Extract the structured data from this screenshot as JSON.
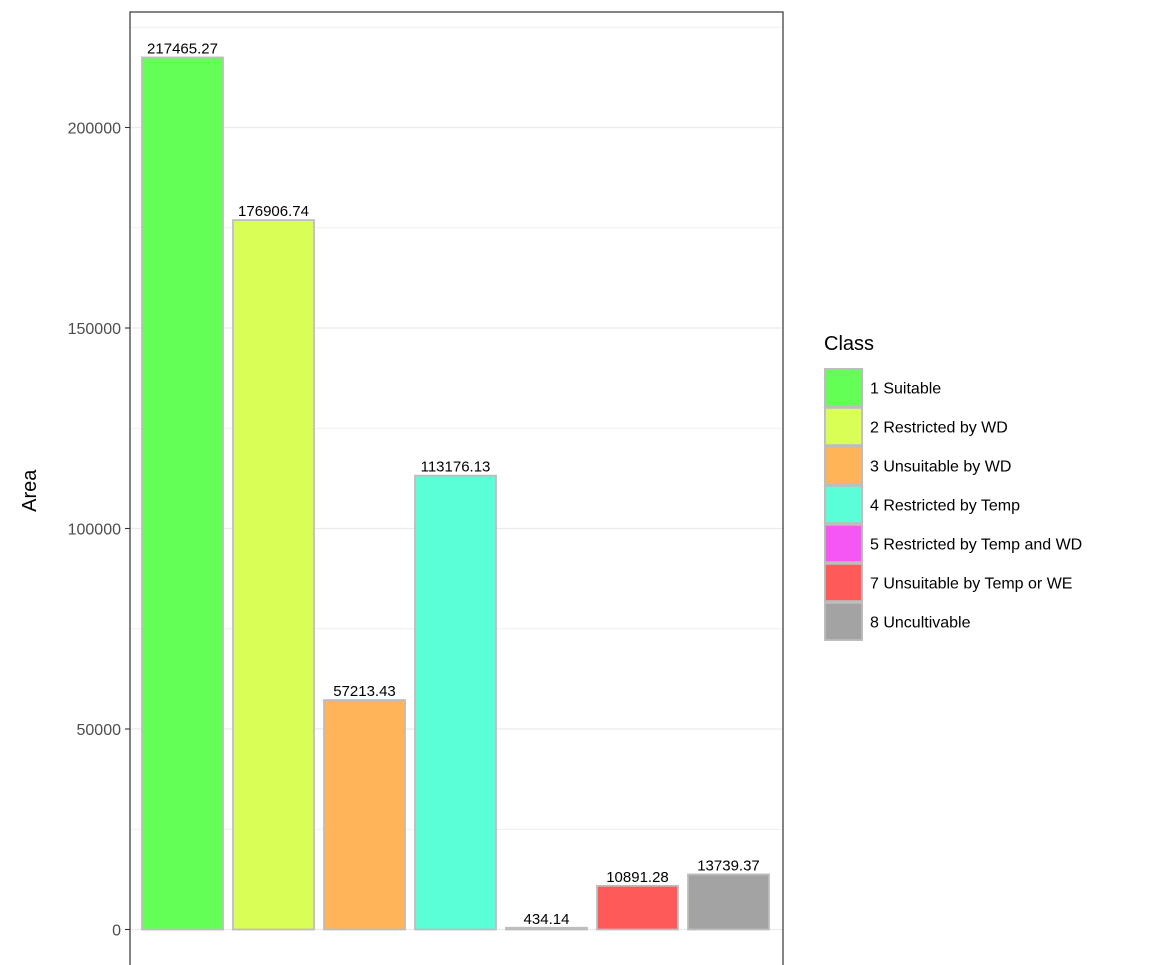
{
  "chart_data": {
    "type": "bar",
    "ylabel": "Area",
    "xlabel": "",
    "ylim": [
      0,
      225000
    ],
    "yticks": [
      0,
      50000,
      100000,
      150000,
      200000
    ],
    "ytick_labels": [
      "0",
      "50000",
      "100000",
      "150000",
      "200000"
    ],
    "grid": true,
    "legend_position": "right",
    "legend_title": "Class",
    "bars": [
      {
        "class": "1 Suitable",
        "value": 217465.27,
        "label": "217465.27",
        "color": "#63FF57"
      },
      {
        "class": "2 Restricted by WD",
        "value": 176906.74,
        "label": "176906.74",
        "color": "#D9FF57"
      },
      {
        "class": "3 Unsuitable by WD",
        "value": 57213.43,
        "label": "57213.43",
        "color": "#FFB45A"
      },
      {
        "class": "4 Restricted by Temp",
        "value": 113176.13,
        "label": "113176.13",
        "color": "#5AFFD7"
      },
      {
        "class": "5 Restricted by Temp and WD",
        "value": 434.14,
        "label": "434.14",
        "color": "#F557F5"
      },
      {
        "class": "7 Unsuitable by Temp or WE",
        "value": 10891.28,
        "label": "10891.28",
        "color": "#FF5A5A"
      },
      {
        "class": "8 Uncultivable",
        "value": 13739.37,
        "label": "13739.37",
        "color": "#A3A3A3"
      }
    ]
  }
}
